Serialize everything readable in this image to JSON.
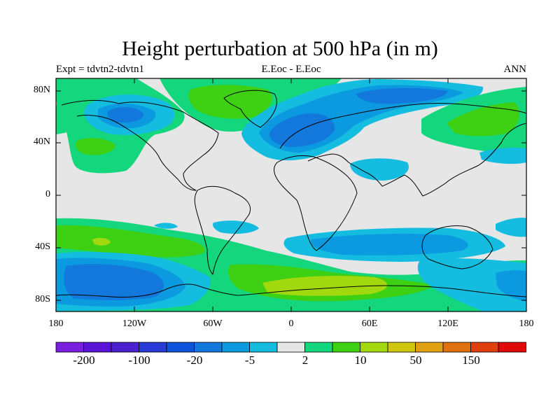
{
  "title": "Height perturbation at 500 hPa (in m)",
  "subtitle_left": "Expt = tdvtn2-tdvtn1",
  "subtitle_center": "E.Eoc - E.Eoc",
  "subtitle_right": "ANN",
  "lat_ticks": [
    "80N",
    "40N",
    "0",
    "40S",
    "80S"
  ],
  "lon_ticks": [
    "180",
    "120W",
    "60W",
    "0",
    "60E",
    "120E",
    "180"
  ],
  "colorbar": {
    "colors": [
      "#7a1fe0",
      "#5a14d8",
      "#4a21d0",
      "#2a3ad8",
      "#0d55d8",
      "#1278dc",
      "#0b99e0",
      "#14bde0",
      "#e6e6e6",
      "#14d67c",
      "#3ed012",
      "#a2d80e",
      "#cfc60e",
      "#e0a010",
      "#e07010",
      "#e04010",
      "#e00a0a"
    ],
    "labels": [
      "-200",
      "-100",
      "-20",
      "-5",
      "2",
      "10",
      "50",
      "150"
    ]
  },
  "field_colors": {
    "neutral": "#e6e6e6",
    "neg_light": "#14bde0",
    "neg_mid": "#0b99e0",
    "neg_deep": "#1278dc",
    "neg_deeper": "#0d55d8",
    "pos_light": "#14d67c",
    "pos_mid": "#3ed012",
    "pos_high": "#a2d80e"
  }
}
